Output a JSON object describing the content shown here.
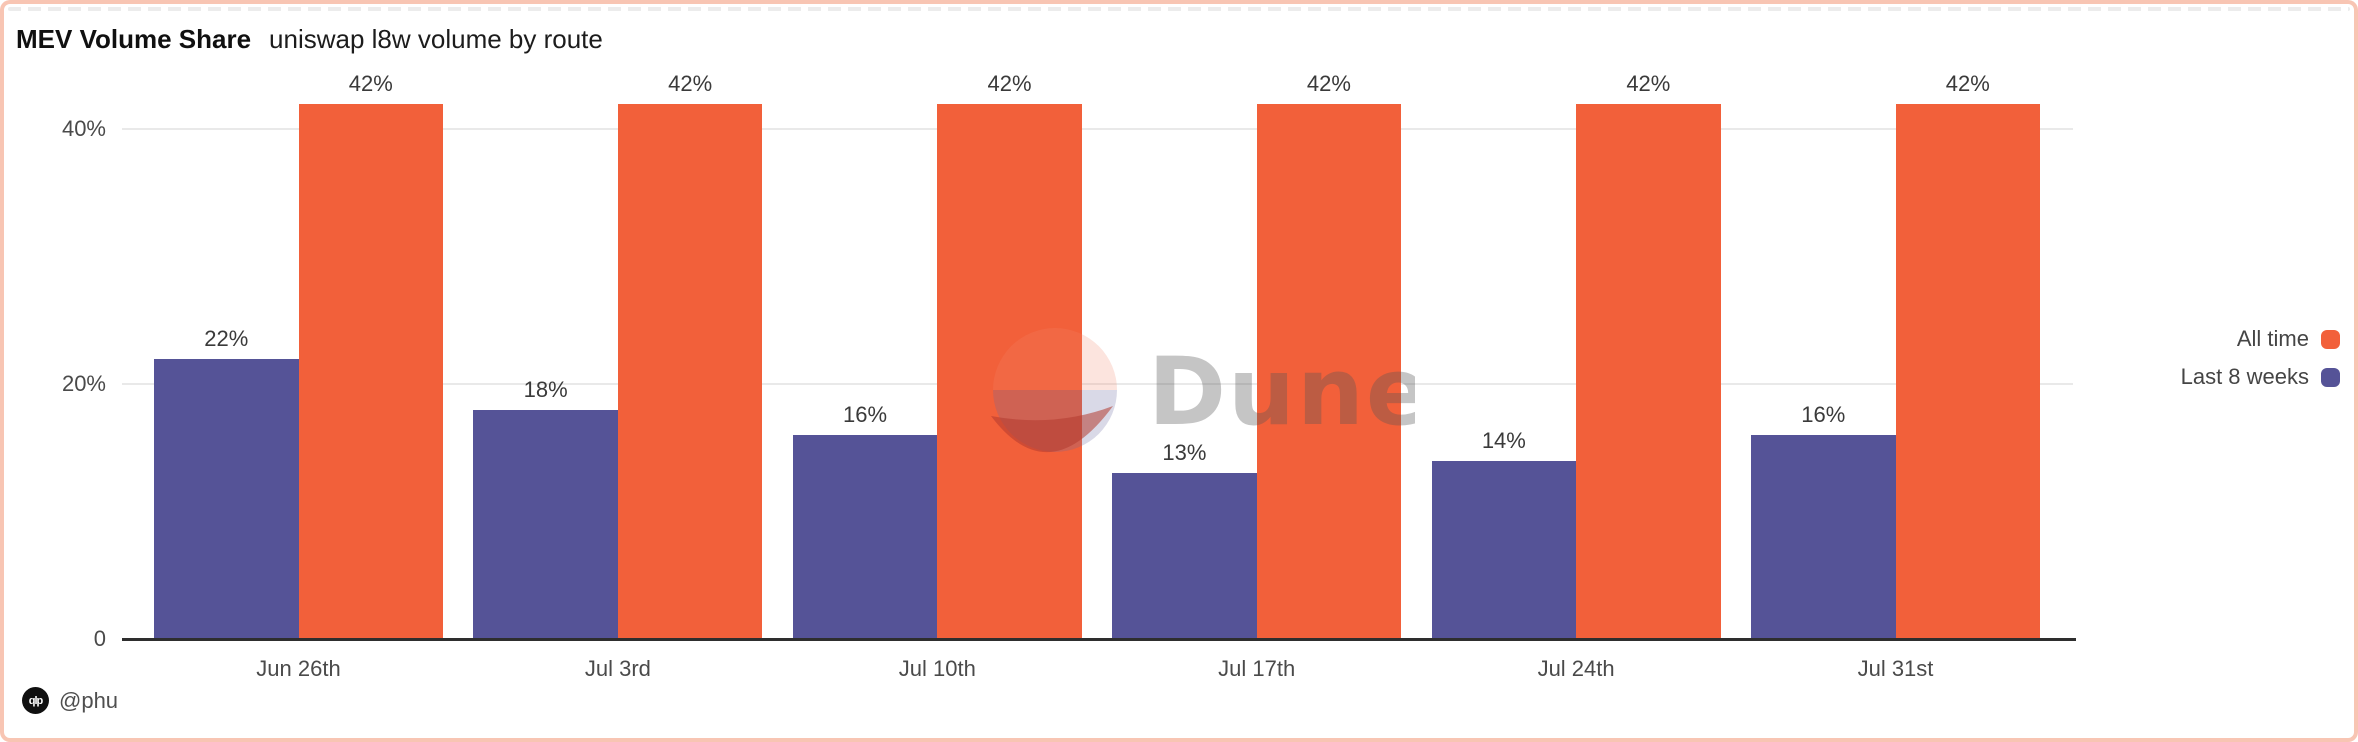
{
  "header": {
    "title": "MEV Volume Share",
    "subtitle": "uniswap l8w volume by route"
  },
  "chart_data": {
    "type": "bar",
    "title": "MEV Volume Share",
    "subtitle": "uniswap l8w volume by route",
    "categories": [
      "Jun 26th",
      "Jul 3rd",
      "Jul 10th",
      "Jul 17th",
      "Jul 24th",
      "Jul 31st"
    ],
    "series": [
      {
        "name": "All time",
        "color": "#f2603a",
        "values": [
          42,
          42,
          42,
          42,
          42,
          42
        ],
        "bar_labels": [
          "42%",
          "42%",
          "42%",
          "42%",
          "42%",
          "42%"
        ]
      },
      {
        "name": "Last 8 weeks",
        "color": "#555397",
        "values": [
          22,
          18,
          16,
          13,
          14,
          16
        ],
        "bar_labels": [
          "22%",
          "18%",
          "16%",
          "13%",
          "14%",
          "16%"
        ]
      }
    ],
    "bar_order_left_to_right": [
      "Last 8 weeks",
      "All time"
    ],
    "y_ticks": [
      {
        "value": 0,
        "label": "0"
      },
      {
        "value": 20,
        "label": "20%"
      },
      {
        "value": 40,
        "label": "40%"
      }
    ],
    "ylim": [
      0,
      44
    ],
    "grid": "horizontal",
    "legend_position": "right"
  },
  "watermark": {
    "brand": "Dune"
  },
  "footer": {
    "logo_monogram": "qlp",
    "author": "@phu"
  }
}
